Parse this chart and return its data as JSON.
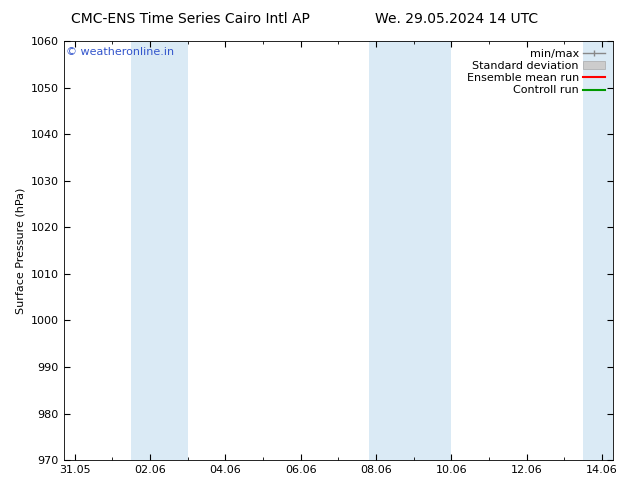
{
  "title_left": "CMC-ENS Time Series Cairo Intl AP",
  "title_right": "We. 29.05.2024 14 UTC",
  "ylabel": "Surface Pressure (hPa)",
  "ylim": [
    970,
    1060
  ],
  "yticks": [
    970,
    980,
    990,
    1000,
    1010,
    1020,
    1030,
    1040,
    1050,
    1060
  ],
  "xlim": [
    -0.3,
    14.3
  ],
  "xtick_labels": [
    "31.05",
    "02.06",
    "04.06",
    "06.06",
    "08.06",
    "10.06",
    "12.06",
    "14.06"
  ],
  "xtick_positions": [
    0,
    2,
    4,
    6,
    8,
    10,
    12,
    14
  ],
  "shaded_bands": [
    {
      "x_start": 1.5,
      "x_end": 3.0,
      "color": "#daeaf5"
    },
    {
      "x_start": 7.8,
      "x_end": 10.0,
      "color": "#daeaf5"
    },
    {
      "x_start": 13.5,
      "x_end": 14.4,
      "color": "#daeaf5"
    }
  ],
  "legend_items": [
    {
      "label": "min/max",
      "color": "#888888",
      "lw": 1.0
    },
    {
      "label": "Standard deviation",
      "color": "#cccccc",
      "lw": 6
    },
    {
      "label": "Ensemble mean run",
      "color": "#ff0000",
      "lw": 1.5
    },
    {
      "label": "Controll run",
      "color": "#009900",
      "lw": 1.5
    }
  ],
  "watermark": "© weatheronline.in",
  "watermark_color": "#3355cc",
  "background_color": "#ffffff",
  "title_fontsize": 10,
  "axis_label_fontsize": 8,
  "tick_fontsize": 8,
  "legend_fontsize": 8
}
